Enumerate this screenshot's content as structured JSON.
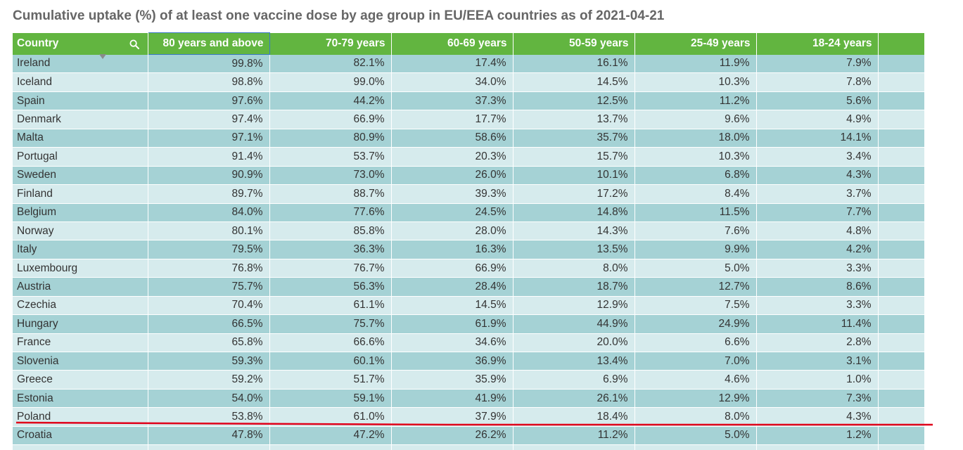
{
  "chart_data": {
    "type": "table",
    "title": "Cumulative uptake (%) of at least one vaccine dose by age group in EU/EEA countries as of 2021-04-21",
    "columns": [
      "Country",
      "80 years and above",
      "70-79 years",
      "60-69 years",
      "50-59 years",
      "25-49 years",
      "18-24 years"
    ],
    "sorted_column": "80 years and above",
    "sort_direction": "descending",
    "rows": [
      [
        "Ireland",
        "99.8%",
        "82.1%",
        "17.4%",
        "16.1%",
        "11.9%",
        "7.9%"
      ],
      [
        "Iceland",
        "98.8%",
        "99.0%",
        "34.0%",
        "14.5%",
        "10.3%",
        "7.8%"
      ],
      [
        "Spain",
        "97.6%",
        "44.2%",
        "37.3%",
        "12.5%",
        "11.2%",
        "5.6%"
      ],
      [
        "Denmark",
        "97.4%",
        "66.9%",
        "17.7%",
        "13.7%",
        "9.6%",
        "4.9%"
      ],
      [
        "Malta",
        "97.1%",
        "80.9%",
        "58.6%",
        "35.7%",
        "18.0%",
        "14.1%"
      ],
      [
        "Portugal",
        "91.4%",
        "53.7%",
        "20.3%",
        "15.7%",
        "10.3%",
        "3.4%"
      ],
      [
        "Sweden",
        "90.9%",
        "73.0%",
        "26.0%",
        "10.1%",
        "6.8%",
        "4.3%"
      ],
      [
        "Finland",
        "89.7%",
        "88.7%",
        "39.3%",
        "17.2%",
        "8.4%",
        "3.7%"
      ],
      [
        "Belgium",
        "84.0%",
        "77.6%",
        "24.5%",
        "14.8%",
        "11.5%",
        "7.7%"
      ],
      [
        "Norway",
        "80.1%",
        "85.8%",
        "28.0%",
        "14.3%",
        "7.6%",
        "4.8%"
      ],
      [
        "Italy",
        "79.5%",
        "36.3%",
        "16.3%",
        "13.5%",
        "9.9%",
        "4.2%"
      ],
      [
        "Luxembourg",
        "76.8%",
        "76.7%",
        "66.9%",
        "8.0%",
        "5.0%",
        "3.3%"
      ],
      [
        "Austria",
        "75.7%",
        "56.3%",
        "28.4%",
        "18.7%",
        "12.7%",
        "8.6%"
      ],
      [
        "Czechia",
        "70.4%",
        "61.1%",
        "14.5%",
        "12.9%",
        "7.5%",
        "3.3%"
      ],
      [
        "Hungary",
        "66.5%",
        "75.7%",
        "61.9%",
        "44.9%",
        "24.9%",
        "11.4%"
      ],
      [
        "France",
        "65.8%",
        "66.6%",
        "34.6%",
        "20.0%",
        "6.6%",
        "2.8%"
      ],
      [
        "Slovenia",
        "59.3%",
        "60.1%",
        "36.9%",
        "13.4%",
        "7.0%",
        "3.1%"
      ],
      [
        "Greece",
        "59.2%",
        "51.7%",
        "35.9%",
        "6.9%",
        "4.6%",
        "1.0%"
      ],
      [
        "Estonia",
        "54.0%",
        "59.1%",
        "41.9%",
        "26.1%",
        "12.9%",
        "7.3%"
      ],
      [
        "Poland",
        "53.8%",
        "61.0%",
        "37.9%",
        "18.4%",
        "8.0%",
        "4.3%"
      ],
      [
        "Croatia",
        "47.8%",
        "47.2%",
        "26.2%",
        "11.2%",
        "5.0%",
        "1.2%"
      ]
    ],
    "highlighted_row": "Poland"
  },
  "icons": {
    "search": "search-icon",
    "sort": "sort-descending-icon"
  },
  "colors": {
    "header_bg": "#62b540",
    "row_odd": "#a5d2d5",
    "row_even": "#d6ebed",
    "sorted_header_border": "#3a78c9",
    "annotation_line": "#e0001a",
    "title": "#666666"
  }
}
